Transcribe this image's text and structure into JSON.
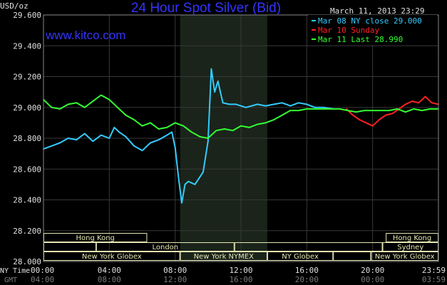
{
  "chart_data": {
    "type": "line",
    "title": "24 Hour Spot Silver (Bid)",
    "website": "www.kitco.com",
    "units": "USD/oz",
    "date": "March 11, 2013 23:29",
    "ylim": [
      28.0,
      29.6
    ],
    "yticks": [
      "29.600",
      "29.400",
      "29.200",
      "29.000",
      "28.800",
      "28.600",
      "28.400",
      "28.200",
      "28.000"
    ],
    "xlim": [
      0,
      24
    ],
    "xticks_ny": [
      "00:00",
      "04:00",
      "08:00",
      "12:00",
      "16:00",
      "20:00",
      "23:59"
    ],
    "xticks_gmt": [
      "04:00",
      "08:00",
      "12:00",
      "16:00",
      "20:00",
      "00:00",
      "03:59"
    ],
    "axis_side_labels": {
      "ny": "NY Time",
      "gmt": "GMT"
    },
    "grid": true,
    "highlight_region": [
      8.3,
      13.6
    ],
    "legend": {
      "placement": "top-right"
    },
    "series": [
      {
        "name": "Mar 08 NY close 29.000",
        "color": "#33ccff",
        "x": [
          0,
          0.5,
          1.0,
          1.5,
          2.0,
          2.5,
          3.0,
          3.5,
          4.0,
          4.3,
          4.6,
          5.0,
          5.5,
          6.0,
          6.5,
          7.0,
          7.5,
          7.8,
          8.0,
          8.2,
          8.4,
          8.6,
          8.8,
          9.2,
          9.7,
          10.0,
          10.2,
          10.4,
          10.6,
          10.9,
          11.3,
          11.7,
          12.3,
          13.0,
          13.5,
          14.0,
          14.5,
          15.0,
          15.5,
          16.0,
          16.5,
          17.0,
          17.6
        ],
        "values": [
          28.73,
          28.75,
          28.77,
          28.8,
          28.79,
          28.83,
          28.78,
          28.82,
          28.8,
          28.87,
          28.84,
          28.81,
          28.75,
          28.72,
          28.77,
          28.79,
          28.82,
          28.84,
          28.74,
          28.55,
          28.38,
          28.5,
          28.52,
          28.5,
          28.58,
          28.78,
          29.25,
          29.1,
          29.17,
          29.03,
          29.02,
          29.02,
          29.0,
          29.02,
          29.01,
          29.02,
          29.03,
          29.01,
          29.03,
          29.02,
          29.0,
          29.0,
          28.99
        ]
      },
      {
        "name": "Mar 10 Sunday",
        "color": "#ff2222",
        "x": [
          18.4,
          18.8,
          19.2,
          19.6,
          20.0,
          20.4,
          20.8,
          21.2,
          21.6,
          22.0,
          22.4,
          22.8,
          23.2,
          23.6,
          24.0
        ],
        "values": [
          28.99,
          28.95,
          28.92,
          28.9,
          28.88,
          28.92,
          28.95,
          28.96,
          28.99,
          29.02,
          29.04,
          29.03,
          29.07,
          29.03,
          29.02
        ]
      },
      {
        "name": "Mar 11 Last 28.990",
        "color": "#33ff33",
        "x": [
          0,
          0.5,
          1.0,
          1.5,
          2.0,
          2.5,
          3.0,
          3.5,
          4.0,
          4.5,
          5.0,
          5.5,
          6.0,
          6.5,
          7.0,
          7.5,
          8.0,
          8.5,
          9.0,
          9.5,
          10.0,
          10.5,
          11.0,
          11.5,
          12.0,
          12.5,
          13.0,
          13.5,
          14.0,
          14.5,
          15.0,
          15.5,
          16.0,
          16.5,
          17.0,
          17.5,
          18.0,
          18.5,
          19.0,
          19.5,
          20.0,
          20.5,
          21.0,
          21.5,
          22.0,
          22.5,
          23.0,
          23.5,
          24.0
        ],
        "values": [
          29.05,
          29.0,
          28.99,
          29.02,
          29.03,
          29.0,
          29.04,
          29.08,
          29.05,
          29.0,
          28.95,
          28.92,
          28.88,
          28.9,
          28.86,
          28.87,
          28.9,
          28.88,
          28.84,
          28.81,
          28.8,
          28.85,
          28.86,
          28.85,
          28.88,
          28.87,
          28.89,
          28.9,
          28.92,
          28.95,
          28.98,
          28.98,
          28.99,
          28.99,
          28.99,
          28.99,
          28.99,
          28.98,
          28.97,
          28.98,
          28.98,
          28.98,
          28.98,
          28.99,
          28.97,
          28.99,
          28.98,
          28.99,
          28.99
        ]
      }
    ],
    "markets": [
      {
        "label": "Hong Kong",
        "row": 0,
        "start": 0,
        "end": 6.3
      },
      {
        "label": "Hong Kong",
        "row": 0,
        "start": 20.8,
        "end": 24
      },
      {
        "label": "",
        "row": 1,
        "start": 0,
        "end": 3.2
      },
      {
        "label": "London",
        "row": 1,
        "start": 3.2,
        "end": 11.6
      },
      {
        "label": "",
        "row": 1,
        "start": 11.6,
        "end": 20.6
      },
      {
        "label": "Sydney",
        "row": 1,
        "start": 20.6,
        "end": 24
      },
      {
        "label": "New York Globex",
        "row": 2,
        "start": 0,
        "end": 8.3
      },
      {
        "label": "New York NYMEX",
        "row": 2,
        "start": 8.3,
        "end": 13.6
      },
      {
        "label": "NY Globex",
        "row": 2,
        "start": 13.6,
        "end": 17.6
      },
      {
        "label": "",
        "row": 2,
        "start": 17.6,
        "end": 19.9
      },
      {
        "label": "New York Globex",
        "row": 2,
        "start": 19.9,
        "end": 24
      }
    ]
  }
}
